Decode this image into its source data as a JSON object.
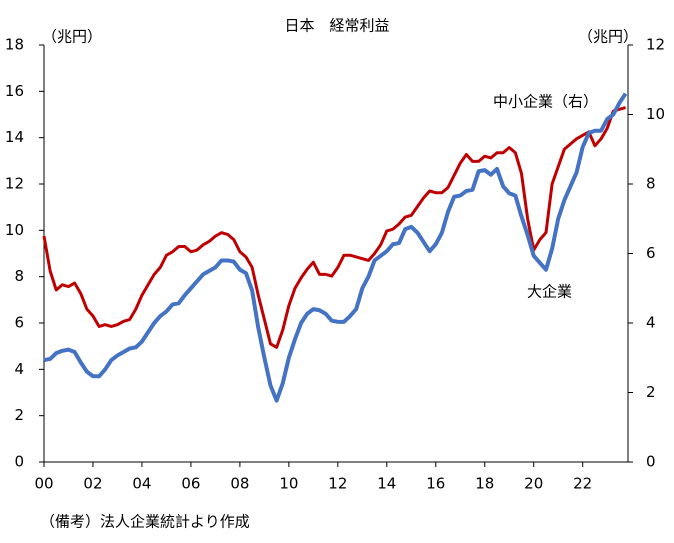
{
  "chart_data": {
    "type": "line",
    "title": "日本　経常利益",
    "y_unit_label": "（兆円）",
    "y2_unit_label": "（兆円）",
    "note": "（備考）法人企業統計より作成",
    "x": [
      2000,
      2000.25,
      2000.5,
      2000.75,
      2001,
      2001.25,
      2001.5,
      2001.75,
      2002,
      2002.25,
      2002.5,
      2002.75,
      2003,
      2003.25,
      2003.5,
      2003.75,
      2004,
      2004.25,
      2004.5,
      2004.75,
      2005,
      2005.25,
      2005.5,
      2005.75,
      2006,
      2006.25,
      2006.5,
      2006.75,
      2007,
      2007.25,
      2007.5,
      2007.75,
      2008,
      2008.25,
      2008.5,
      2008.75,
      2009,
      2009.25,
      2009.5,
      2009.75,
      2010,
      2010.25,
      2010.5,
      2010.75,
      2011,
      2011.25,
      2011.5,
      2011.75,
      2012,
      2012.25,
      2012.5,
      2012.75,
      2013,
      2013.25,
      2013.5,
      2013.75,
      2014,
      2014.25,
      2014.5,
      2014.75,
      2015,
      2015.25,
      2015.5,
      2015.75,
      2016,
      2016.25,
      2016.5,
      2016.75,
      2017,
      2017.25,
      2017.5,
      2017.75,
      2018,
      2018.25,
      2018.5,
      2018.75,
      2019,
      2019.25,
      2019.5,
      2019.75,
      2020,
      2020.25,
      2020.5,
      2020.75,
      2021,
      2021.25,
      2021.5,
      2021.75,
      2022,
      2022.25,
      2022.5,
      2022.75,
      2023,
      2023.25,
      2023.5,
      2023.75
    ],
    "series": [
      {
        "name": "中小企業（右）",
        "color": "#c00000",
        "axis": "y2",
        "values": [
          6.5,
          5.5,
          4.95,
          5.1,
          5.05,
          5.15,
          4.85,
          4.4,
          4.2,
          3.9,
          3.95,
          3.9,
          3.95,
          4.05,
          4.1,
          4.4,
          4.8,
          5.1,
          5.4,
          5.6,
          5.95,
          6.05,
          6.2,
          6.2,
          6.05,
          6.1,
          6.25,
          6.35,
          6.5,
          6.6,
          6.55,
          6.4,
          6.05,
          5.9,
          5.6,
          4.8,
          4.1,
          3.4,
          3.3,
          3.8,
          4.5,
          5.0,
          5.3,
          5.55,
          5.75,
          5.4,
          5.4,
          5.35,
          5.6,
          5.95,
          5.95,
          5.9,
          5.85,
          5.8,
          6.0,
          6.25,
          6.65,
          6.7,
          6.85,
          7.05,
          7.1,
          7.35,
          7.6,
          7.8,
          7.75,
          7.75,
          7.9,
          8.25,
          8.6,
          8.85,
          8.65,
          8.65,
          8.8,
          8.75,
          8.9,
          8.9,
          9.05,
          8.9,
          8.3,
          7.0,
          6.1,
          6.4,
          6.6,
          8.0,
          8.5,
          9.0,
          9.15,
          9.3,
          9.4,
          9.5,
          9.1,
          9.3,
          9.6,
          10.1,
          10.15,
          10.2
        ]
      },
      {
        "name": "大企業",
        "color": "#4472c4",
        "values": [
          4.4,
          4.45,
          4.7,
          4.8,
          4.85,
          4.75,
          4.3,
          3.9,
          3.7,
          3.7,
          4.0,
          4.4,
          4.6,
          4.75,
          4.9,
          4.95,
          5.2,
          5.6,
          6.0,
          6.3,
          6.5,
          6.8,
          6.85,
          7.2,
          7.5,
          7.8,
          8.1,
          8.25,
          8.4,
          8.7,
          8.7,
          8.65,
          8.3,
          8.15,
          7.4,
          5.8,
          4.5,
          3.3,
          2.65,
          3.4,
          4.5,
          5.3,
          6.0,
          6.4,
          6.6,
          6.55,
          6.4,
          6.1,
          6.05,
          6.05,
          6.3,
          6.6,
          7.5,
          8.0,
          8.7,
          8.9,
          9.1,
          9.4,
          9.45,
          10.05,
          10.15,
          9.9,
          9.5,
          9.1,
          9.4,
          9.9,
          10.8,
          11.45,
          11.5,
          11.7,
          11.75,
          12.55,
          12.6,
          12.4,
          12.65,
          11.9,
          11.6,
          11.5,
          10.6,
          9.8,
          8.9,
          8.6,
          8.3,
          9.2,
          10.5,
          11.3,
          11.9,
          12.5,
          13.6,
          14.2,
          14.3,
          14.3,
          14.8,
          15.0,
          15.5,
          15.9
        ]
      }
    ],
    "xlim": [
      2000,
      2023.85
    ],
    "xticks": [
      {
        "value": 2000,
        "label": "00"
      },
      {
        "value": 2002,
        "label": "02"
      },
      {
        "value": 2004,
        "label": "04"
      },
      {
        "value": 2006,
        "label": "06"
      },
      {
        "value": 2008,
        "label": "08"
      },
      {
        "value": 2010,
        "label": "10"
      },
      {
        "value": 2012,
        "label": "12"
      },
      {
        "value": 2014,
        "label": "14"
      },
      {
        "value": 2016,
        "label": "16"
      },
      {
        "value": 2018,
        "label": "18"
      },
      {
        "value": 2020,
        "label": "20"
      },
      {
        "value": 2022,
        "label": "22"
      }
    ],
    "ylim": [
      0,
      18
    ],
    "yticks": [
      0,
      2,
      4,
      6,
      8,
      10,
      12,
      14,
      16,
      18
    ],
    "y2lim": [
      0,
      12
    ],
    "y2ticks": [
      0,
      2,
      4,
      6,
      8,
      10,
      12
    ],
    "grid": false
  }
}
